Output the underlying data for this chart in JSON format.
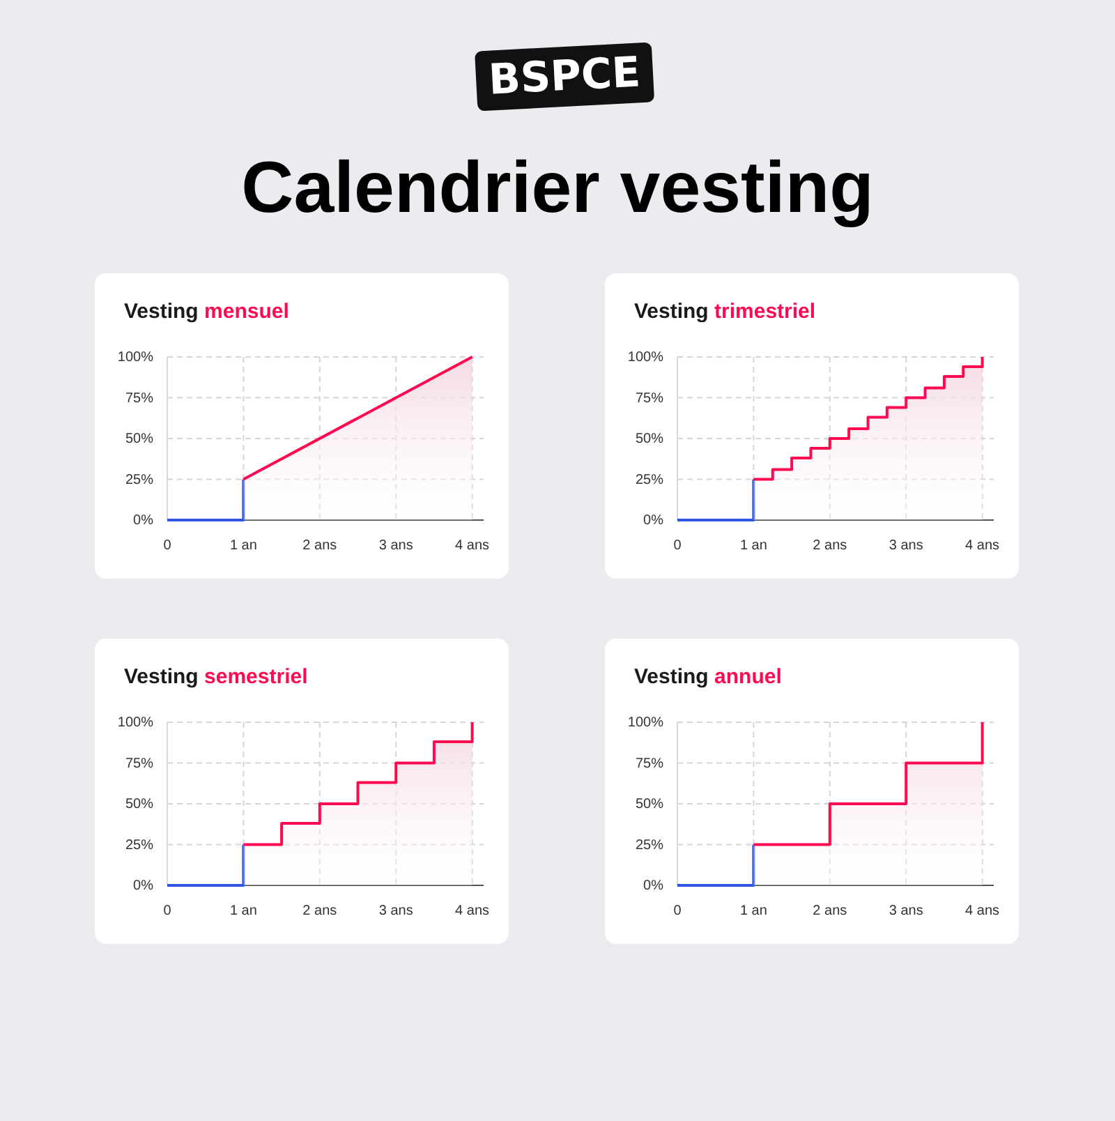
{
  "chart_data": [
    {
      "type": "area",
      "title": "Vesting",
      "subtitle": "mensuel",
      "annotations": [
        "BSPCE",
        "Calendrier vesting"
      ],
      "xlim": [
        0,
        4.15
      ],
      "ylim": [
        0,
        100
      ],
      "grid": true,
      "xticks": [
        {
          "value": 0,
          "label": "0"
        },
        {
          "value": 1,
          "label": "1 an"
        },
        {
          "value": 2,
          "label": "2 ans"
        },
        {
          "value": 3,
          "label": "3 ans"
        },
        {
          "value": 4,
          "label": "4 ans"
        }
      ],
      "yticks": [
        {
          "value": 0,
          "label": "0%"
        },
        {
          "value": 25,
          "label": "25%"
        },
        {
          "value": 50,
          "label": "50%"
        },
        {
          "value": 75,
          "label": "75%"
        },
        {
          "value": 100,
          "label": "100%"
        }
      ],
      "series": [
        {
          "type": "line",
          "color": "#2f55e0",
          "x": [
            0,
            1,
            1
          ],
          "values": [
            0,
            0,
            25
          ]
        },
        {
          "color": "#ff0a50",
          "x": [
            1,
            4
          ],
          "values": [
            25,
            100
          ]
        }
      ]
    },
    {
      "type": "area",
      "title": "Vesting",
      "subtitle": "trimestriel",
      "xlim": [
        0,
        4.15
      ],
      "ylim": [
        0,
        100
      ],
      "grid": true,
      "xticks": [
        {
          "value": 0,
          "label": "0"
        },
        {
          "value": 1,
          "label": "1 an"
        },
        {
          "value": 2,
          "label": "2 ans"
        },
        {
          "value": 3,
          "label": "3 ans"
        },
        {
          "value": 4,
          "label": "4 ans"
        }
      ],
      "yticks": [
        {
          "value": 0,
          "label": "0%"
        },
        {
          "value": 25,
          "label": "25%"
        },
        {
          "value": 50,
          "label": "50%"
        },
        {
          "value": 75,
          "label": "75%"
        },
        {
          "value": 100,
          "label": "100%"
        }
      ],
      "series": [
        {
          "type": "line",
          "color": "#2f55e0",
          "x": [
            0,
            1,
            1
          ],
          "values": [
            0,
            0,
            25
          ]
        },
        {
          "color": "#ff0a50",
          "x": [
            1,
            1.25,
            1.25,
            1.5,
            1.5,
            1.75,
            1.75,
            2,
            2,
            2.25,
            2.25,
            2.5,
            2.5,
            2.75,
            2.75,
            3,
            3,
            3.25,
            3.25,
            3.5,
            3.5,
            3.75,
            3.75,
            4,
            4
          ],
          "values": [
            25,
            25,
            31,
            31,
            38,
            38,
            44,
            44,
            50,
            50,
            56,
            56,
            63,
            63,
            69,
            69,
            75,
            75,
            81,
            81,
            88,
            88,
            94,
            94,
            100
          ]
        }
      ]
    },
    {
      "type": "area",
      "title": "Vesting",
      "subtitle": "semestriel",
      "xlim": [
        0,
        4.15
      ],
      "ylim": [
        0,
        100
      ],
      "grid": true,
      "xticks": [
        {
          "value": 0,
          "label": "0"
        },
        {
          "value": 1,
          "label": "1 an"
        },
        {
          "value": 2,
          "label": "2 ans"
        },
        {
          "value": 3,
          "label": "3 ans"
        },
        {
          "value": 4,
          "label": "4 ans"
        }
      ],
      "yticks": [
        {
          "value": 0,
          "label": "0%"
        },
        {
          "value": 25,
          "label": "25%"
        },
        {
          "value": 50,
          "label": "50%"
        },
        {
          "value": 75,
          "label": "75%"
        },
        {
          "value": 100,
          "label": "100%"
        }
      ],
      "series": [
        {
          "type": "line",
          "color": "#2f55e0",
          "x": [
            0,
            1,
            1
          ],
          "values": [
            0,
            0,
            25
          ]
        },
        {
          "color": "#ff0a50",
          "x": [
            1,
            1.5,
            1.5,
            2,
            2,
            2.5,
            2.5,
            3,
            3,
            3.5,
            3.5,
            4,
            4
          ],
          "values": [
            25,
            25,
            38,
            38,
            50,
            50,
            63,
            63,
            75,
            75,
            88,
            88,
            100
          ]
        }
      ]
    },
    {
      "type": "area",
      "title": "Vesting",
      "subtitle": "annuel",
      "xlim": [
        0,
        4.15
      ],
      "ylim": [
        0,
        100
      ],
      "grid": true,
      "xticks": [
        {
          "value": 0,
          "label": "0"
        },
        {
          "value": 1,
          "label": "1 an"
        },
        {
          "value": 2,
          "label": "2 ans"
        },
        {
          "value": 3,
          "label": "3 ans"
        },
        {
          "value": 4,
          "label": "4 ans"
        }
      ],
      "yticks": [
        {
          "value": 0,
          "label": "0%"
        },
        {
          "value": 25,
          "label": "25%"
        },
        {
          "value": 50,
          "label": "50%"
        },
        {
          "value": 75,
          "label": "75%"
        },
        {
          "value": 100,
          "label": "100%"
        }
      ],
      "series": [
        {
          "type": "line",
          "color": "#2f55e0",
          "x": [
            0,
            1,
            1
          ],
          "values": [
            0,
            0,
            25
          ]
        },
        {
          "color": "#ff0a50",
          "x": [
            1,
            2,
            2,
            3,
            3,
            4,
            4
          ],
          "values": [
            25,
            25,
            50,
            50,
            75,
            75,
            100
          ]
        }
      ]
    }
  ]
}
